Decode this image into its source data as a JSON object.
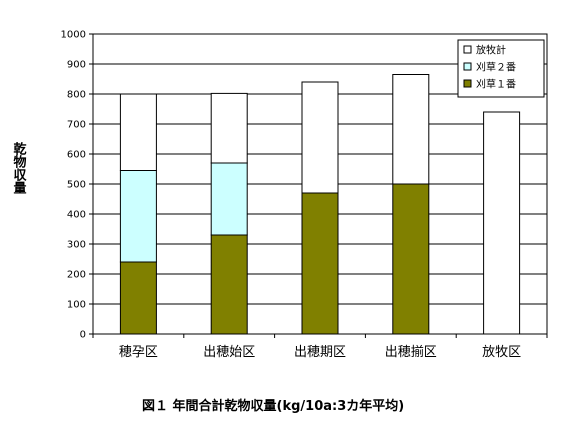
{
  "chart_data": {
    "type": "bar",
    "stacked": true,
    "categories": [
      "穂孕区",
      "出穂始区",
      "出穂期区",
      "出穂揃区",
      "放牧区"
    ],
    "series": [
      {
        "name": "刈草１番",
        "color": "#808000",
        "values": [
          240,
          330,
          470,
          500,
          0
        ]
      },
      {
        "name": "刈草２番",
        "color": "#ccffff",
        "values": [
          305,
          240,
          0,
          0,
          0
        ]
      },
      {
        "name": "放牧計",
        "color": "#ffffff",
        "values": [
          255,
          232,
          370,
          365,
          740
        ]
      }
    ],
    "totals": [
      800,
      802,
      840,
      865,
      740
    ],
    "ylim": [
      0,
      1000
    ],
    "yticks": [
      "0",
      "100",
      "200",
      "300",
      "400",
      "500",
      "600",
      "700",
      "800",
      "900",
      "1000"
    ],
    "ylabel": "乾物収量",
    "title": "図１ 年間合計乾物収量(kg/10a:3カ年平均)",
    "grid": true,
    "legend_position": "top-right"
  }
}
